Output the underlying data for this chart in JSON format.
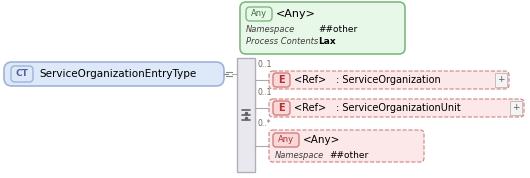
{
  "ct_label": "CT",
  "main_label": "ServiceOrganizationEntryType",
  "any_top_label": "Any",
  "any_top_title": "<Any>",
  "any_top_ns_label": "Namespace",
  "any_top_ns_value": "##other",
  "any_top_pc_label": "Process Contents",
  "any_top_pc_value": "Lax",
  "row1_mult": "0..1",
  "row1_e": "E",
  "row1_ref": "<Ref>",
  "row1_type": ": ServiceOrganization",
  "row2_mult": "0..1",
  "row2_e": "E",
  "row2_ref": "<Ref>",
  "row2_type": ": ServiceOrganizationUnit",
  "row3_mult": "0..*",
  "row3_any": "Any",
  "row3_title": "<Any>",
  "row3_ns_label": "Namespace",
  "row3_ns_value": "##other",
  "bg_color": "#ffffff",
  "ct_box_fill": "#dde8f8",
  "ct_box_edge": "#a0b4d8",
  "any_top_fill": "#e8f8e8",
  "any_top_edge": "#80b880",
  "seq_box_fill": "#e8e8ee",
  "seq_box_edge": "#b0b0b8",
  "e_fill": "#f8d8d8",
  "e_edge": "#d08080",
  "any_pink_fill": "#f8d8d8",
  "any_pink_edge": "#d08080",
  "dashed_fill": "#fce8e8",
  "dashed_edge": "#d08080",
  "any3_fill": "#fce8e8",
  "any3_edge": "#d08080",
  "line_color": "#aaaaaa",
  "plus_color": "#aaaaaa"
}
